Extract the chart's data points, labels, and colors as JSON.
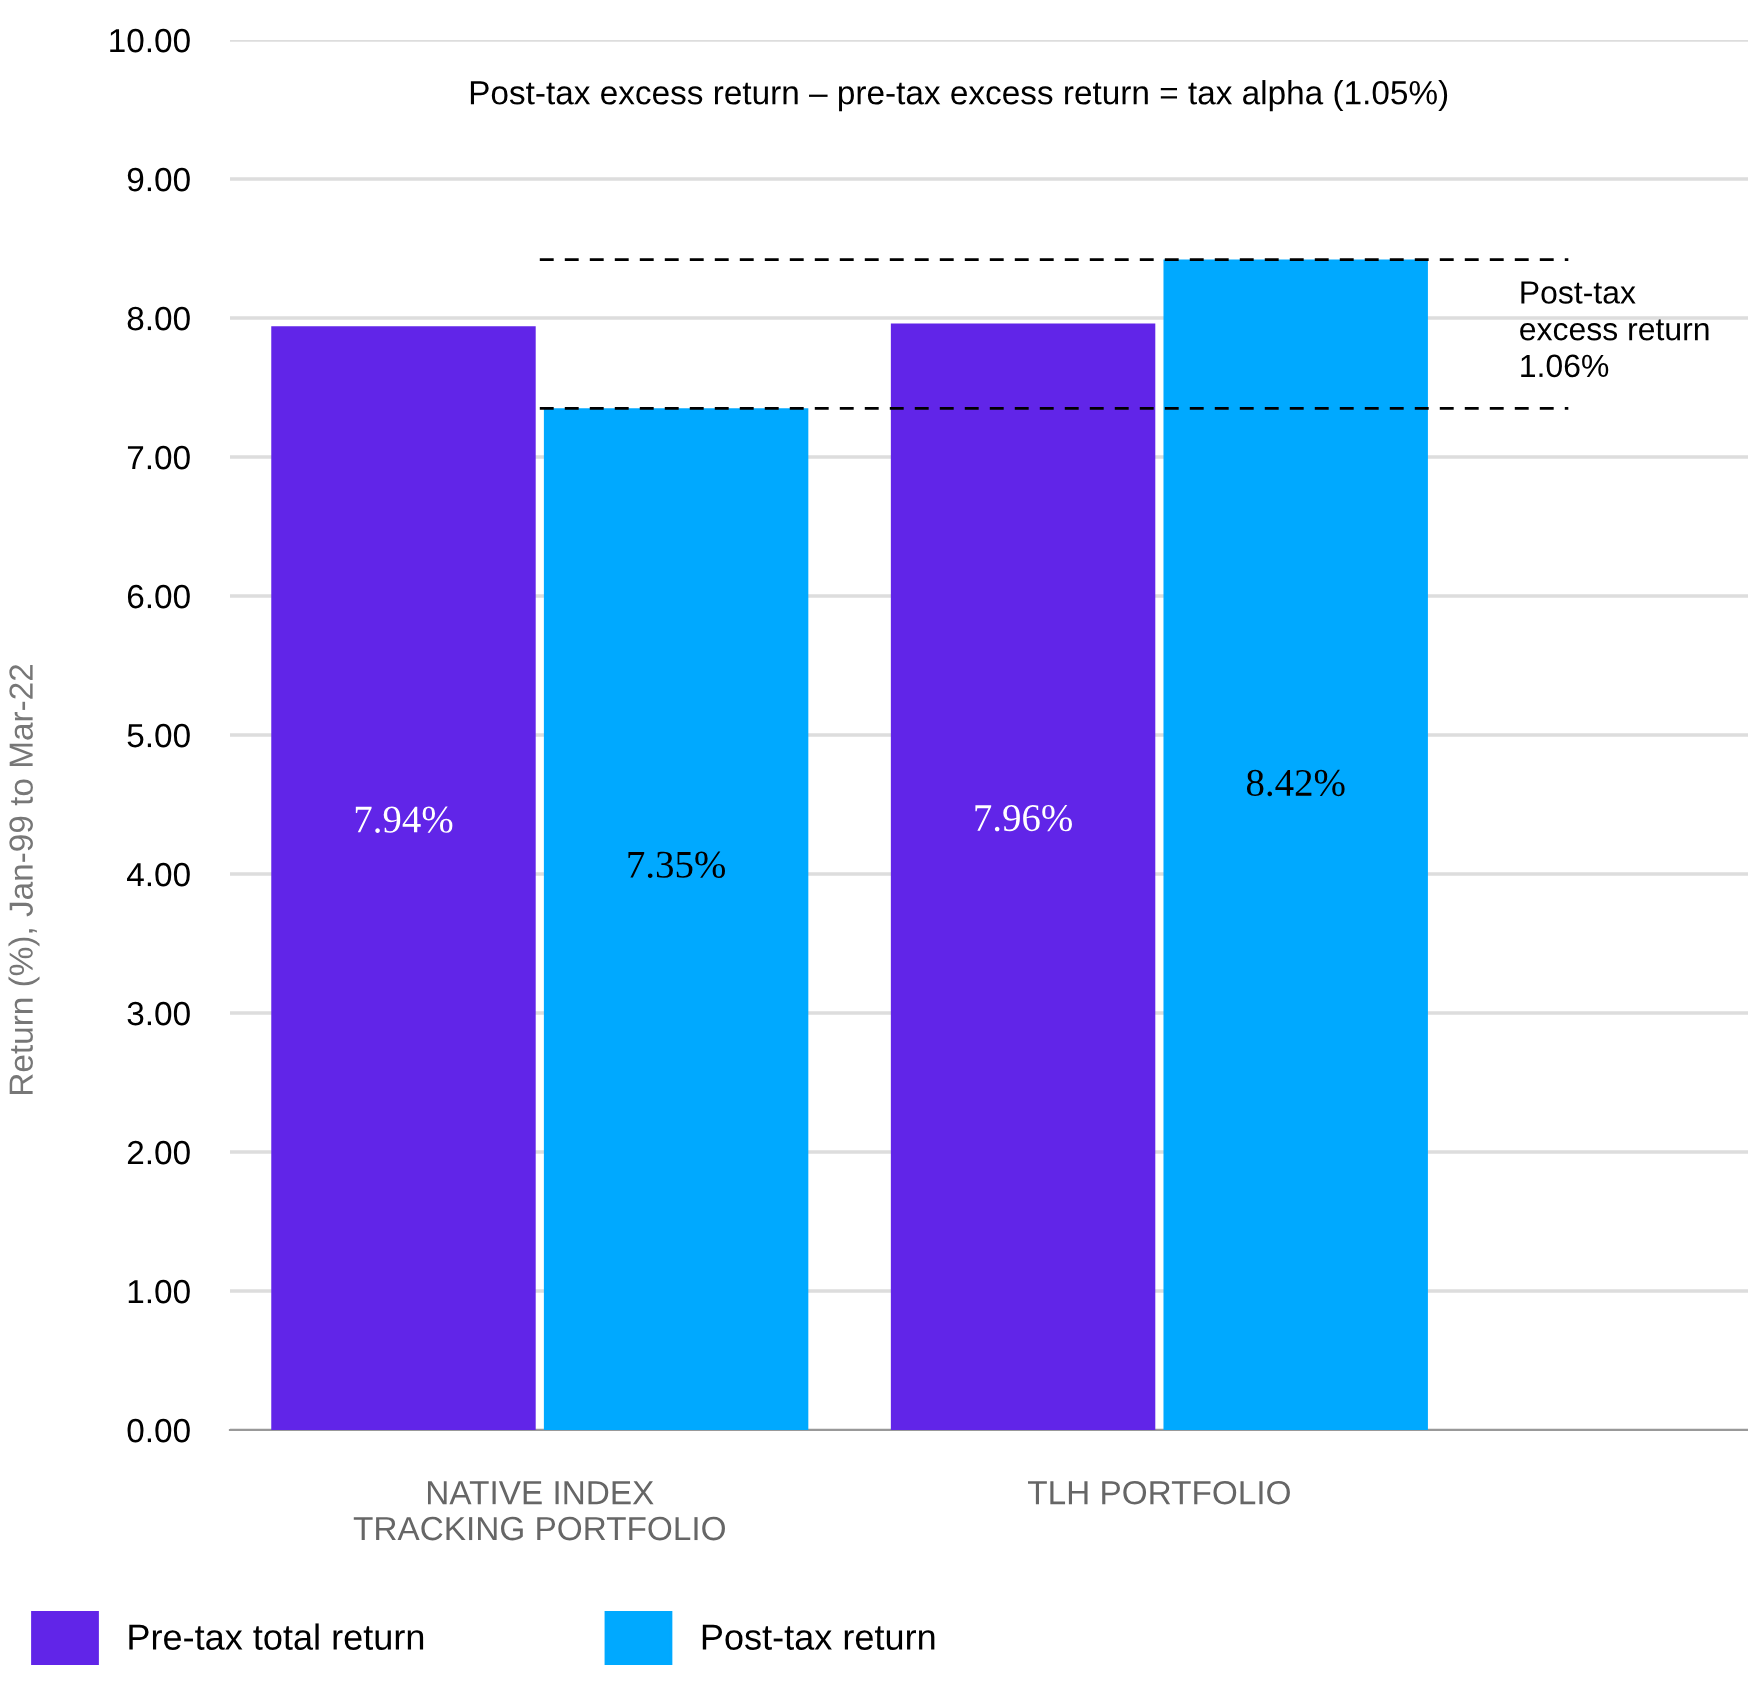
{
  "chart_data": {
    "type": "bar",
    "title": "Post-tax excess return – pre-tax excess return = tax alpha (1.05%)",
    "ylabel": "Return (%), Jan-99 to Mar-22",
    "categories": [
      "NATIVE INDEX\nTRACKING PORTFOLIO",
      "TLH PORTFOLIO"
    ],
    "series": [
      {
        "name": "Pre-tax total return",
        "color": "#6125e8",
        "values": [
          7.94,
          7.96
        ],
        "value_labels": [
          "7.94%",
          "7.96%"
        ]
      },
      {
        "name": "Post-tax return",
        "color": "#00a9ff",
        "values": [
          7.35,
          8.42
        ],
        "value_labels": [
          "7.35%",
          "8.42%"
        ]
      }
    ],
    "ylim": [
      0,
      10
    ],
    "yticks": [
      {
        "value": 0,
        "label": "0.00"
      },
      {
        "value": 1,
        "label": "1.00"
      },
      {
        "value": 2,
        "label": "2.00"
      },
      {
        "value": 3,
        "label": "3.00"
      },
      {
        "value": 4,
        "label": "4.00"
      },
      {
        "value": 5,
        "label": "5.00"
      },
      {
        "value": 6,
        "label": "6.00"
      },
      {
        "value": 7,
        "label": "7.00"
      },
      {
        "value": 8,
        "label": "8.00"
      },
      {
        "value": 9,
        "label": "9.00"
      },
      {
        "value": 10,
        "label": "10.00"
      }
    ],
    "ref_lines": [
      {
        "axis": "y",
        "value": 8.42,
        "label": null,
        "color": "#000000",
        "line_style": "dashed"
      },
      {
        "axis": "y",
        "value": 7.35,
        "label": null,
        "color": "#000000",
        "line_style": "dashed"
      }
    ],
    "annotations": [
      "Post-tax\nexcess return\n1.06%"
    ],
    "grid": "y",
    "legend": "bottom left"
  }
}
